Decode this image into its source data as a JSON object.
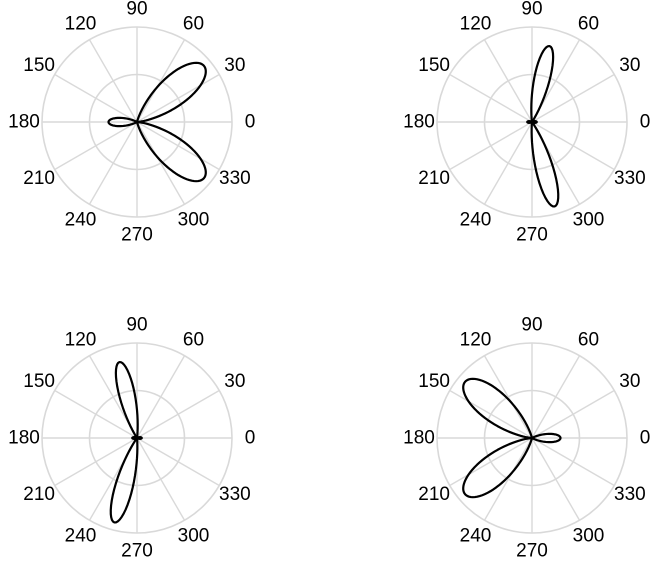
{
  "chart_data": [
    {
      "type": "polar",
      "theta_ticks_deg": [
        0,
        30,
        60,
        90,
        120,
        150,
        180,
        210,
        240,
        270,
        300,
        330
      ],
      "theta_tick_labels": [
        "0",
        "30",
        "60",
        "90",
        "120",
        "150",
        "180",
        "210",
        "240",
        "270",
        "300",
        "330"
      ],
      "r_grid": [
        0.5,
        1.0
      ],
      "grid": true,
      "series": [
        {
          "lobes": [
            {
              "direction_deg": 40,
              "peak_r": 0.92,
              "half_width_deg": 38
            },
            {
              "direction_deg": 320,
              "peak_r": 0.92,
              "half_width_deg": 38
            },
            {
              "direction_deg": 180,
              "peak_r": 0.3,
              "half_width_deg": 32
            }
          ]
        }
      ]
    },
    {
      "type": "polar",
      "theta_ticks_deg": [
        0,
        30,
        60,
        90,
        120,
        150,
        180,
        210,
        240,
        270,
        300,
        330
      ],
      "theta_tick_labels": [
        "0",
        "30",
        "60",
        "90",
        "120",
        "150",
        "180",
        "210",
        "240",
        "270",
        "300",
        "330"
      ],
      "r_grid": [
        0.5,
        1.0
      ],
      "grid": true,
      "series": [
        {
          "lobes": [
            {
              "direction_deg": 77,
              "peak_r": 0.82,
              "half_width_deg": 22
            },
            {
              "direction_deg": 285,
              "peak_r": 0.92,
              "half_width_deg": 22
            },
            {
              "direction_deg": 0,
              "peak_r": 0.05,
              "half_width_deg": 40
            },
            {
              "direction_deg": 180,
              "peak_r": 0.05,
              "half_width_deg": 40
            }
          ]
        }
      ]
    },
    {
      "type": "polar",
      "theta_ticks_deg": [
        0,
        30,
        60,
        90,
        120,
        150,
        180,
        210,
        240,
        270,
        300,
        330
      ],
      "theta_tick_labels": [
        "0",
        "30",
        "60",
        "90",
        "120",
        "150",
        "180",
        "210",
        "240",
        "270",
        "300",
        "330"
      ],
      "r_grid": [
        0.5,
        1.0
      ],
      "grid": true,
      "series": [
        {
          "lobes": [
            {
              "direction_deg": 103,
              "peak_r": 0.82,
              "half_width_deg": 22
            },
            {
              "direction_deg": 255,
              "peak_r": 0.92,
              "half_width_deg": 22
            },
            {
              "direction_deg": 0,
              "peak_r": 0.05,
              "half_width_deg": 40
            },
            {
              "direction_deg": 180,
              "peak_r": 0.05,
              "half_width_deg": 40
            }
          ]
        }
      ]
    },
    {
      "type": "polar",
      "theta_ticks_deg": [
        0,
        30,
        60,
        90,
        120,
        150,
        180,
        210,
        240,
        270,
        300,
        330
      ],
      "theta_tick_labels": [
        "0",
        "30",
        "60",
        "90",
        "120",
        "150",
        "180",
        "210",
        "240",
        "270",
        "300",
        "330"
      ],
      "r_grid": [
        0.5,
        1.0
      ],
      "grid": true,
      "series": [
        {
          "lobes": [
            {
              "direction_deg": 140,
              "peak_r": 0.92,
              "half_width_deg": 38
            },
            {
              "direction_deg": 220,
              "peak_r": 0.92,
              "half_width_deg": 38
            },
            {
              "direction_deg": 0,
              "peak_r": 0.3,
              "half_width_deg": 32
            }
          ]
        }
      ]
    }
  ]
}
